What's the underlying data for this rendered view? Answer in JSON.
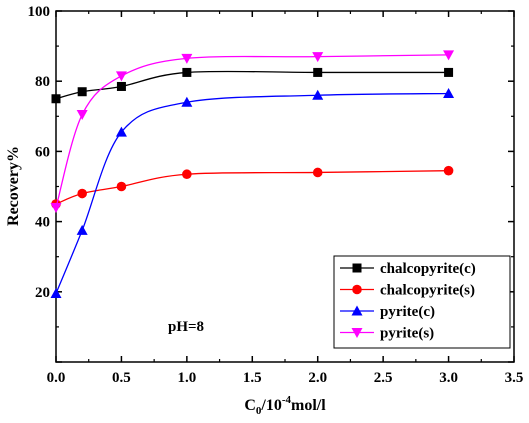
{
  "chart_data": {
    "type": "line",
    "title": "",
    "xlabel": "C0/10-4mol/l",
    "xlabel_parts": {
      "base": "C",
      "sub": "0",
      "mid": "/10",
      "sup": "-4",
      "tail": "mol/l"
    },
    "ylabel": "Recovery%",
    "xlim": [
      0,
      3.5
    ],
    "ylim": [
      0,
      100
    ],
    "xticks": [
      0.0,
      0.5,
      1.0,
      1.5,
      2.0,
      2.5,
      3.0,
      3.5
    ],
    "xtick_labels": [
      "0.0",
      "0.5",
      "1.0",
      "1.5",
      "2.0",
      "2.5",
      "3.0",
      "3.5"
    ],
    "yticks": [
      0,
      20,
      40,
      60,
      80,
      100
    ],
    "ytick_labels": [
      "",
      "20",
      "40",
      "60",
      "80",
      "100"
    ],
    "grid": false,
    "legend_position": "bottom-right",
    "smooth": true,
    "annotation": "pH=8",
    "series": [
      {
        "name": "chalcopyrite(c)",
        "color": "#000000",
        "marker": "square",
        "x": [
          0,
          0.2,
          0.5,
          1.0,
          2.0,
          3.0
        ],
        "y": [
          75,
          77,
          78.5,
          82.5,
          82.5,
          82.5
        ]
      },
      {
        "name": "chalcopyrite(s)",
        "color": "#ff0000",
        "marker": "circle",
        "x": [
          0,
          0.2,
          0.5,
          1.0,
          2.0,
          3.0
        ],
        "y": [
          45,
          48,
          50,
          53.5,
          54,
          54.5
        ]
      },
      {
        "name": "pyrite(c)",
        "color": "#0000ff",
        "marker": "triangle-up",
        "x": [
          0,
          0.2,
          0.5,
          1.0,
          2.0,
          3.0
        ],
        "y": [
          19.5,
          37.5,
          65.5,
          74,
          76,
          76.5
        ]
      },
      {
        "name": "pyrite(s)",
        "color": "#ff00ff",
        "marker": "triangle-down",
        "x": [
          0,
          0.2,
          0.5,
          1.0,
          2.0,
          3.0
        ],
        "y": [
          44,
          70.5,
          81.5,
          86.5,
          87,
          87.5
        ]
      }
    ]
  }
}
